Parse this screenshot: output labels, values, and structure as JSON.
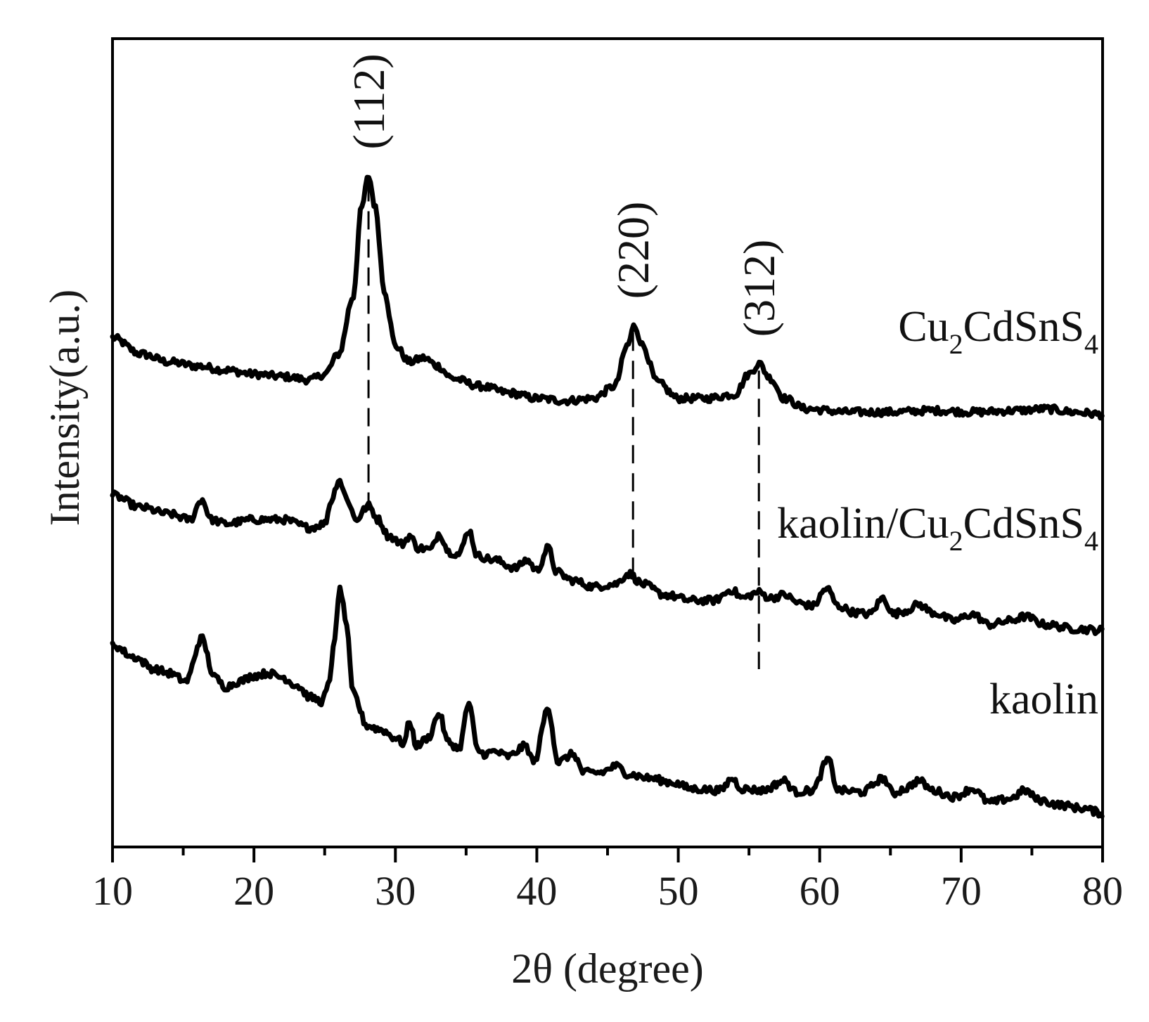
{
  "chart_data": {
    "type": "line",
    "xlabel": "2θ (degree)",
    "ylabel": "Intensity(a.u.)",
    "xlim": [
      10,
      80
    ],
    "ylim": [
      0,
      10
    ],
    "x_ticks": [
      10,
      20,
      30,
      40,
      50,
      60,
      70,
      80
    ],
    "grid": false,
    "legend": "inline labels at right end of each trace",
    "series": [
      {
        "name": "Cu2CdSnS4",
        "label_main": "Cu",
        "label_parts": [
          [
            "Cu",
            ""
          ],
          [
            "2",
            "sub"
          ],
          [
            "CdSnS",
            ""
          ],
          [
            "4",
            "sub"
          ]
        ],
        "points": [
          [
            10,
            6.3
          ],
          [
            12,
            6.1
          ],
          [
            14,
            6.0
          ],
          [
            16,
            5.95
          ],
          [
            18,
            5.9
          ],
          [
            20,
            5.85
          ],
          [
            22,
            5.82
          ],
          [
            24,
            5.78
          ],
          [
            25,
            5.85
          ],
          [
            26,
            6.1
          ],
          [
            27,
            6.8
          ],
          [
            27.6,
            7.9
          ],
          [
            28.1,
            8.3
          ],
          [
            28.6,
            7.9
          ],
          [
            29.2,
            6.9
          ],
          [
            30,
            6.2
          ],
          [
            31,
            6.0
          ],
          [
            32,
            6.05
          ],
          [
            33,
            5.95
          ],
          [
            34,
            5.8
          ],
          [
            36,
            5.7
          ],
          [
            38,
            5.62
          ],
          [
            40,
            5.55
          ],
          [
            42,
            5.52
          ],
          [
            44,
            5.55
          ],
          [
            45.5,
            5.7
          ],
          [
            46.4,
            6.2
          ],
          [
            46.9,
            6.45
          ],
          [
            47.5,
            6.2
          ],
          [
            48.5,
            5.75
          ],
          [
            50,
            5.55
          ],
          [
            52,
            5.55
          ],
          [
            54,
            5.6
          ],
          [
            55,
            5.85
          ],
          [
            55.7,
            5.98
          ],
          [
            56.5,
            5.8
          ],
          [
            57.5,
            5.55
          ],
          [
            59,
            5.42
          ],
          [
            62,
            5.38
          ],
          [
            65,
            5.38
          ],
          [
            68,
            5.4
          ],
          [
            71,
            5.38
          ],
          [
            74,
            5.4
          ],
          [
            76,
            5.42
          ],
          [
            78,
            5.38
          ],
          [
            80,
            5.35
          ]
        ]
      },
      {
        "name": "kaolin/Cu2CdSnS4",
        "label_parts": [
          [
            "kaolin/Cu",
            ""
          ],
          [
            "2",
            "sub"
          ],
          [
            "CdSnS",
            ""
          ],
          [
            "4",
            "sub"
          ]
        ],
        "points": [
          [
            10,
            4.35
          ],
          [
            12,
            4.2
          ],
          [
            14,
            4.12
          ],
          [
            15.5,
            4.05
          ],
          [
            16.3,
            4.3
          ],
          [
            17,
            4.05
          ],
          [
            18,
            4.0
          ],
          [
            20,
            4.05
          ],
          [
            22,
            4.05
          ],
          [
            24,
            3.95
          ],
          [
            25,
            4.0
          ],
          [
            25.5,
            4.3
          ],
          [
            26,
            4.55
          ],
          [
            26.6,
            4.3
          ],
          [
            27.2,
            4.05
          ],
          [
            28.1,
            4.22
          ],
          [
            28.8,
            4.05
          ],
          [
            29.5,
            3.85
          ],
          [
            30.5,
            3.75
          ],
          [
            31,
            3.85
          ],
          [
            31.6,
            3.7
          ],
          [
            32.5,
            3.68
          ],
          [
            33.1,
            3.88
          ],
          [
            33.8,
            3.65
          ],
          [
            34.5,
            3.62
          ],
          [
            35.2,
            3.92
          ],
          [
            35.8,
            3.6
          ],
          [
            37,
            3.55
          ],
          [
            38.5,
            3.45
          ],
          [
            39.3,
            3.55
          ],
          [
            40,
            3.42
          ],
          [
            40.8,
            3.7
          ],
          [
            41.4,
            3.4
          ],
          [
            42.5,
            3.3
          ],
          [
            44,
            3.22
          ],
          [
            45.5,
            3.25
          ],
          [
            46.5,
            3.38
          ],
          [
            47.5,
            3.25
          ],
          [
            49,
            3.12
          ],
          [
            51,
            3.05
          ],
          [
            52.5,
            3.05
          ],
          [
            53.8,
            3.18
          ],
          [
            54.5,
            3.08
          ],
          [
            55.7,
            3.15
          ],
          [
            56.5,
            3.08
          ],
          [
            57.5,
            3.12
          ],
          [
            58.5,
            3.02
          ],
          [
            59.5,
            2.98
          ],
          [
            60.5,
            3.2
          ],
          [
            61.3,
            2.98
          ],
          [
            62.5,
            2.9
          ],
          [
            63.5,
            2.88
          ],
          [
            64.5,
            3.08
          ],
          [
            65.2,
            2.88
          ],
          [
            66,
            2.92
          ],
          [
            67,
            3.0
          ],
          [
            68,
            2.9
          ],
          [
            69.5,
            2.8
          ],
          [
            70.8,
            2.88
          ],
          [
            72,
            2.75
          ],
          [
            73.5,
            2.8
          ],
          [
            74.5,
            2.85
          ],
          [
            76,
            2.75
          ],
          [
            78,
            2.7
          ],
          [
            80,
            2.68
          ]
        ]
      },
      {
        "name": "kaolin",
        "label_parts": [
          [
            "kaolin",
            ""
          ]
        ],
        "points": [
          [
            10,
            2.5
          ],
          [
            11.5,
            2.35
          ],
          [
            13,
            2.2
          ],
          [
            14,
            2.15
          ],
          [
            15.2,
            2.05
          ],
          [
            16.3,
            2.58
          ],
          [
            17.2,
            2.1
          ],
          [
            18,
            1.98
          ],
          [
            19,
            2.05
          ],
          [
            20,
            2.12
          ],
          [
            21,
            2.15
          ],
          [
            22,
            2.1
          ],
          [
            23,
            2.0
          ],
          [
            24,
            1.85
          ],
          [
            24.8,
            1.8
          ],
          [
            25.3,
            2.0
          ],
          [
            25.7,
            2.6
          ],
          [
            26.1,
            3.2
          ],
          [
            26.5,
            2.8
          ],
          [
            27,
            1.9
          ],
          [
            28,
            1.5
          ],
          [
            29,
            1.45
          ],
          [
            30,
            1.35
          ],
          [
            30.6,
            1.28
          ],
          [
            31,
            1.55
          ],
          [
            31.5,
            1.25
          ],
          [
            32.3,
            1.35
          ],
          [
            33.1,
            1.65
          ],
          [
            33.7,
            1.3
          ],
          [
            34.5,
            1.22
          ],
          [
            35.2,
            1.78
          ],
          [
            35.8,
            1.2
          ],
          [
            36.3,
            1.15
          ],
          [
            37,
            1.18
          ],
          [
            38,
            1.12
          ],
          [
            39.2,
            1.25
          ],
          [
            39.8,
            1.05
          ],
          [
            40.8,
            1.72
          ],
          [
            41.5,
            1.05
          ],
          [
            42.6,
            1.15
          ],
          [
            43.3,
            0.92
          ],
          [
            44.5,
            0.92
          ],
          [
            45.6,
            1.0
          ],
          [
            46.5,
            0.9
          ],
          [
            48,
            0.85
          ],
          [
            49.5,
            0.8
          ],
          [
            51,
            0.72
          ],
          [
            53,
            0.7
          ],
          [
            53.8,
            0.85
          ],
          [
            54.5,
            0.72
          ],
          [
            56,
            0.7
          ],
          [
            57.5,
            0.82
          ],
          [
            58.3,
            0.68
          ],
          [
            59.5,
            0.7
          ],
          [
            60.6,
            1.08
          ],
          [
            61.3,
            0.7
          ],
          [
            63,
            0.68
          ],
          [
            64.5,
            0.85
          ],
          [
            65.2,
            0.66
          ],
          [
            66,
            0.72
          ],
          [
            67,
            0.82
          ],
          [
            68,
            0.7
          ],
          [
            69.5,
            0.62
          ],
          [
            70.8,
            0.72
          ],
          [
            72,
            0.55
          ],
          [
            73.5,
            0.6
          ],
          [
            74.5,
            0.7
          ],
          [
            75.5,
            0.58
          ],
          [
            77,
            0.52
          ],
          [
            78.5,
            0.48
          ],
          [
            80,
            0.42
          ]
        ]
      }
    ],
    "peaks": [
      {
        "label": "(112)",
        "x": 28.1,
        "line_top": 8.3,
        "line_bottom": 4.1
      },
      {
        "label": "(220)",
        "x": 46.8,
        "line_top": 6.45,
        "line_bottom": 3.3
      },
      {
        "label": "(312)",
        "x": 55.7,
        "line_top": 5.98,
        "line_bottom": 2.2
      }
    ]
  }
}
